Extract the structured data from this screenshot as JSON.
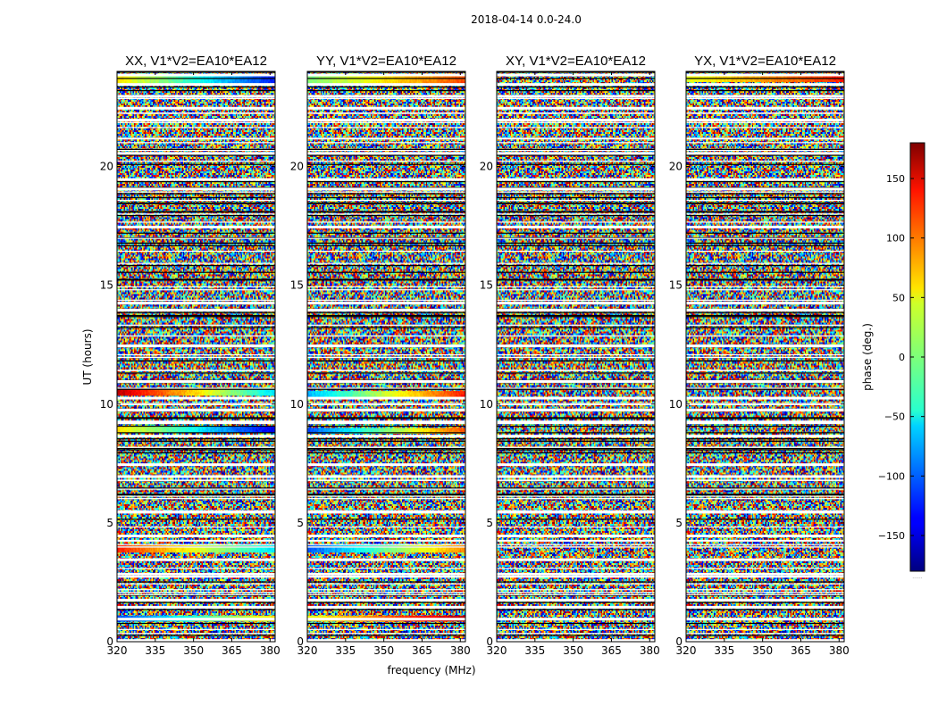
{
  "figure": {
    "suptitle": "2018-04-14 0.0-24.0",
    "xlabel": "frequency (MHz)",
    "ylabel": "UT (hours)",
    "colorbar_label": "phase (deg.)",
    "colorbar_footnote": "......",
    "colormap": "jet"
  },
  "chart_data": {
    "type": "heatmap",
    "title": "2018-04-14 0.0-24.0",
    "xlabel": "frequency (MHz)",
    "ylabel": "UT (hours)",
    "x_range_mhz": [
      320,
      382
    ],
    "y_range_hours": [
      0,
      24
    ],
    "x_ticks": [
      320,
      335,
      350,
      365,
      380
    ],
    "y_ticks": [
      0,
      5,
      10,
      15,
      20
    ],
    "color_range_deg": [
      -180,
      180
    ],
    "colorbar_ticks": [
      150,
      100,
      50,
      0,
      -50,
      -100,
      -150
    ],
    "panels": [
      {
        "name": "XX",
        "title": "XX, V1*V2=EA10*EA12"
      },
      {
        "name": "YY",
        "title": "YY, V1*V2=EA10*EA12"
      },
      {
        "name": "XY",
        "title": "XY, V1*V2=EA10*EA12"
      },
      {
        "name": "YX",
        "title": "YX, V1*V2=EA10*EA12"
      }
    ],
    "flagged_gaps_ut_hours": [
      0.05,
      0.95,
      1.45,
      1.75,
      2.75,
      3.45,
      4.45,
      5.45,
      6.95,
      7.45,
      8.65,
      9.25,
      9.75,
      10.25,
      10.95,
      12.45,
      13.95,
      14.25,
      17.45,
      19.05,
      19.45,
      20.55,
      21.95,
      22.45,
      22.95,
      23.45,
      23.85
    ]
  }
}
